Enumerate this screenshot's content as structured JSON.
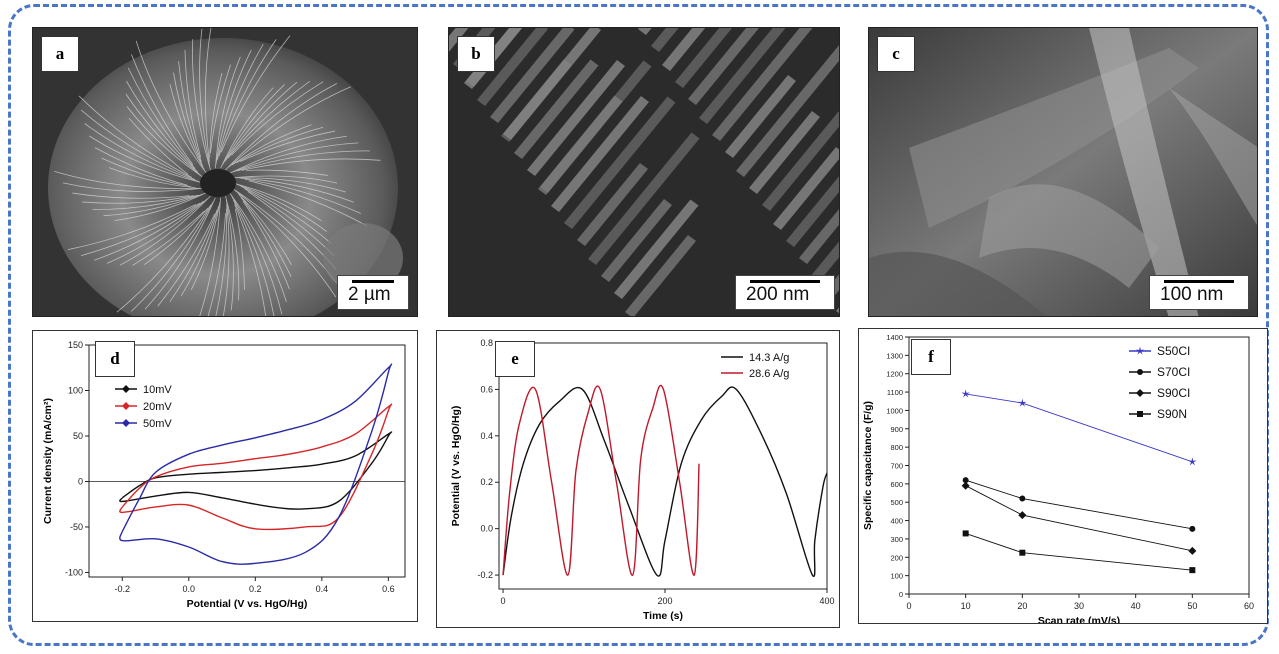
{
  "images": [
    {
      "letter": "a",
      "scale": "2 µm"
    },
    {
      "letter": "b",
      "scale": "200 nm"
    },
    {
      "letter": "c",
      "scale": "100 nm"
    }
  ],
  "chart_data": [
    {
      "panel": "d",
      "type": "line",
      "xlabel": "Potential (V vs. HgO/Hg)",
      "ylabel": "Current density (mA/cm²)",
      "xlim": [
        -0.3,
        0.65
      ],
      "ylim": [
        -105,
        150
      ],
      "xticks": [
        -0.2,
        0.0,
        0.2,
        0.4,
        0.6
      ],
      "xtick_labels": [
        "-0.2",
        "0.0",
        "0.2",
        "0.4",
        "0.6"
      ],
      "yticks": [
        -100,
        -50,
        0,
        50,
        100,
        150
      ],
      "legend_position": "top-left",
      "series": [
        {
          "name": "10mV",
          "color": "#111111",
          "marker": "diamond",
          "x": [
            -0.2,
            -0.15,
            -0.1,
            0.0,
            0.1,
            0.2,
            0.3,
            0.4,
            0.5,
            0.6,
            0.6,
            0.55,
            0.45,
            0.35,
            0.25,
            0.1,
            0.0,
            -0.1,
            -0.2
          ],
          "y": [
            -18,
            -5,
            4,
            8,
            10,
            12,
            15,
            19,
            28,
            52,
            50,
            20,
            -22,
            -30,
            -28,
            -18,
            -12,
            -16,
            -22
          ]
        },
        {
          "name": "20mV",
          "color": "#d62728",
          "marker": "diamond",
          "x": [
            -0.2,
            -0.15,
            -0.1,
            0.0,
            0.1,
            0.2,
            0.3,
            0.4,
            0.5,
            0.6,
            0.6,
            0.55,
            0.45,
            0.35,
            0.2,
            0.1,
            0.0,
            -0.1,
            -0.2
          ],
          "y": [
            -28,
            -8,
            5,
            16,
            20,
            25,
            30,
            38,
            52,
            82,
            78,
            30,
            -40,
            -50,
            -52,
            -40,
            -26,
            -28,
            -34
          ]
        },
        {
          "name": "50mV",
          "color": "#2a2aa8",
          "marker": "diamond",
          "x": [
            -0.2,
            -0.15,
            -0.1,
            0.0,
            0.1,
            0.2,
            0.3,
            0.4,
            0.5,
            0.6,
            0.6,
            0.55,
            0.45,
            0.35,
            0.2,
            0.1,
            0.0,
            -0.1,
            -0.2
          ],
          "y": [
            -55,
            -20,
            10,
            30,
            40,
            48,
            57,
            68,
            88,
            125,
            120,
            55,
            -40,
            -78,
            -90,
            -88,
            -72,
            -63,
            -65
          ]
        }
      ]
    },
    {
      "panel": "e",
      "type": "line",
      "xlabel": "Time (s)",
      "ylabel": "Potential (V vs. HgO/Hg)",
      "xlim": [
        -5,
        400
      ],
      "ylim": [
        -0.26,
        0.8
      ],
      "xticks": [
        0,
        200,
        400
      ],
      "yticks": [
        -0.2,
        0.0,
        0.2,
        0.4,
        0.6,
        0.8
      ],
      "ytick_labels": [
        "-0.2",
        "0.0",
        "0.2",
        "0.4",
        "0.6",
        "0.8"
      ],
      "legend_position": "top-right",
      "series": [
        {
          "name": "14.3 A/g",
          "color": "#111111",
          "x": [
            0,
            10,
            25,
            45,
            70,
            98,
            125,
            155,
            190,
            200,
            220,
            245,
            270,
            288,
            320,
            350,
            382,
            385,
            395,
            400
          ],
          "y": [
            -0.2,
            0.05,
            0.28,
            0.45,
            0.55,
            0.6,
            0.38,
            0.1,
            -0.2,
            -0.05,
            0.28,
            0.47,
            0.57,
            0.6,
            0.4,
            0.15,
            -0.2,
            -0.05,
            0.18,
            0.24
          ]
        },
        {
          "name": "28.6 A/g",
          "color": "#c0182a",
          "x": [
            0,
            8,
            20,
            40,
            60,
            80,
            90,
            105,
            120,
            140,
            160,
            170,
            185,
            198,
            218,
            236,
            242
          ],
          "y": [
            -0.2,
            0.15,
            0.45,
            0.6,
            0.2,
            -0.2,
            0.25,
            0.5,
            0.6,
            0.2,
            -0.2,
            0.3,
            0.52,
            0.6,
            0.2,
            -0.2,
            0.28
          ]
        }
      ]
    },
    {
      "panel": "f",
      "type": "line",
      "xlabel": "Scan rate (mV/s)",
      "ylabel": "Specific capacitance (F/g)",
      "xlim": [
        0,
        60
      ],
      "ylim": [
        0,
        1400
      ],
      "xticks": [
        0,
        10,
        20,
        30,
        40,
        50,
        60
      ],
      "yticks": [
        0,
        100,
        200,
        300,
        400,
        500,
        600,
        700,
        800,
        900,
        1000,
        1100,
        1200,
        1300,
        1400
      ],
      "legend_position": "top-right",
      "series": [
        {
          "name": "S50CI",
          "color": "#3a3ac8",
          "marker": "star",
          "x": [
            10,
            20,
            50
          ],
          "y": [
            1090,
            1040,
            720
          ]
        },
        {
          "name": "S70CI",
          "color": "#111111",
          "marker": "circle",
          "x": [
            10,
            20,
            50
          ],
          "y": [
            620,
            520,
            355
          ]
        },
        {
          "name": "S90CI",
          "color": "#111111",
          "marker": "diamond",
          "x": [
            10,
            20,
            50
          ],
          "y": [
            590,
            430,
            235
          ]
        },
        {
          "name": "S90N",
          "color": "#111111",
          "marker": "square",
          "x": [
            10,
            20,
            50
          ],
          "y": [
            330,
            225,
            130
          ]
        }
      ]
    }
  ]
}
